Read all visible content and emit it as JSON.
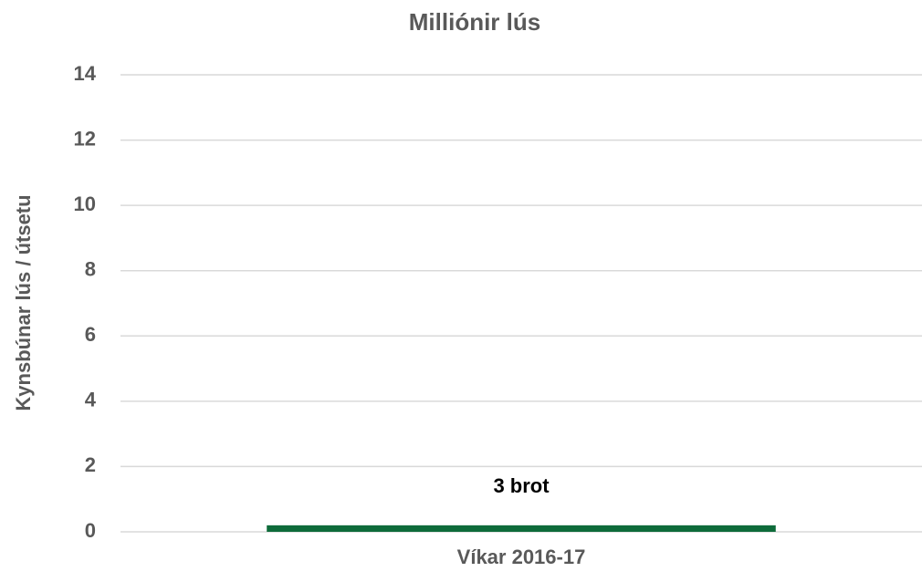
{
  "chart_data": {
    "type": "bar",
    "title": "Milliónir lús",
    "y_label": "Kynsbúnar lús / útsetu",
    "annotation": "3 brot",
    "categories": [
      "Víkar 2016-17"
    ],
    "values": [
      0.2
    ],
    "color": "#0e6b3a",
    "ylim": [
      0,
      14
    ],
    "yticks": [
      0,
      2,
      4,
      6,
      8,
      10,
      12,
      14
    ],
    "grid": true
  }
}
